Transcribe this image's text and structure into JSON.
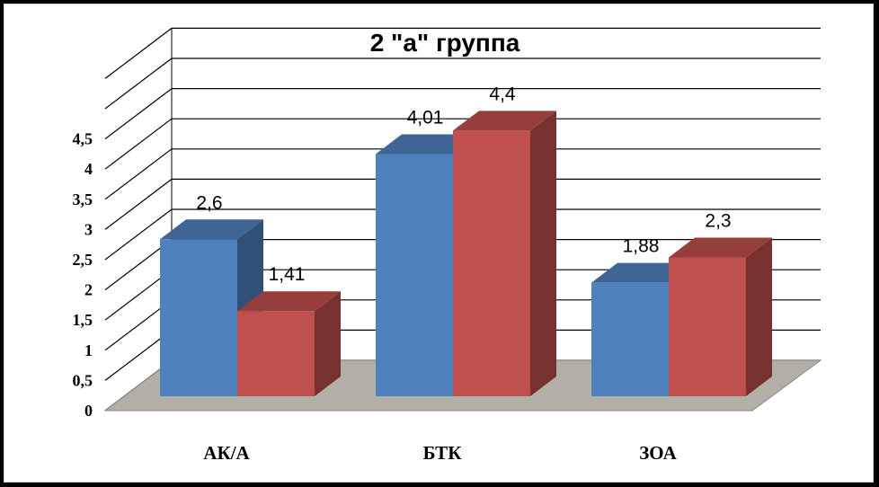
{
  "chart_data": {
    "type": "bar",
    "title": "2 \"а\" группа",
    "categories": [
      "АК/А",
      "БТК",
      "ЗОА"
    ],
    "series": [
      {
        "values": [
          2.6,
          4.01,
          1.88
        ],
        "labels": [
          "2,6",
          "4,01",
          "1,88"
        ],
        "color": "#4f81bd"
      },
      {
        "values": [
          1.41,
          4.4,
          2.3
        ],
        "labels": [
          "1,41",
          "4,4",
          "2,3"
        ],
        "color": "#c0504d"
      }
    ],
    "ylim": [
      0,
      5.5
    ],
    "yticks": [
      "0",
      "0,5",
      "1",
      "1,5",
      "2",
      "2,5",
      "3",
      "3,5",
      "4",
      "4,5"
    ],
    "grid": true,
    "three_d": true,
    "floor_color": "#b2afa6"
  }
}
